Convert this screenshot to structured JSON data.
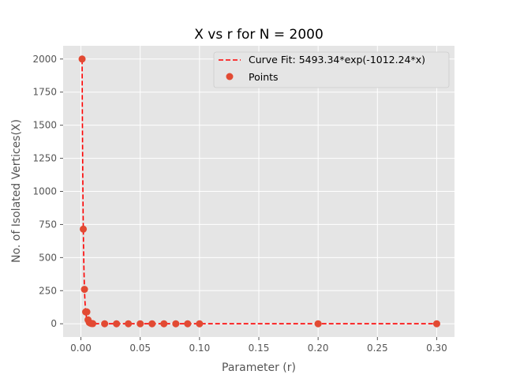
{
  "chart_data": {
    "type": "scatter",
    "title": "X vs r for N = 2000",
    "xlabel": "Parameter (r)",
    "ylabel": "No. of Isolated Vertices(X)",
    "xlim": [
      -0.015,
      0.315
    ],
    "ylim": [
      -100,
      2100
    ],
    "xticks": [
      0.0,
      0.05,
      0.1,
      0.15,
      0.2,
      0.25,
      0.3
    ],
    "xtick_labels": [
      "0.00",
      "0.05",
      "0.10",
      "0.15",
      "0.20",
      "0.25",
      "0.30"
    ],
    "yticks": [
      0,
      250,
      500,
      750,
      1000,
      1250,
      1500,
      1750,
      2000
    ],
    "ytick_labels": [
      "0",
      "250",
      "500",
      "750",
      "1000",
      "1250",
      "1500",
      "1750",
      "2000"
    ],
    "grid": true,
    "legend_position": "top-right",
    "colors": {
      "background": "#e5e5e5",
      "grid": "#ffffff",
      "points": "#e24a33",
      "curve": "#ff0000",
      "text": "#555555",
      "title": "#000000"
    },
    "series": [
      {
        "name": "Curve Fit: 5493.34*exp(-1012.24*x)",
        "kind": "line",
        "style": "dashed",
        "a": 5493.34,
        "b": 1012.24
      },
      {
        "name": "Points",
        "kind": "scatter",
        "x": [
          0.001,
          0.002,
          0.003,
          0.004,
          0.005,
          0.006,
          0.007,
          0.008,
          0.009,
          0.01,
          0.02,
          0.03,
          0.04,
          0.05,
          0.06,
          0.07,
          0.08,
          0.09,
          0.1,
          0.2,
          0.3
        ],
        "y": [
          2000,
          715,
          260,
          90,
          90,
          30,
          10,
          5,
          2,
          1,
          0,
          0,
          0,
          0,
          0,
          0,
          0,
          0,
          0,
          0,
          0
        ]
      }
    ]
  }
}
